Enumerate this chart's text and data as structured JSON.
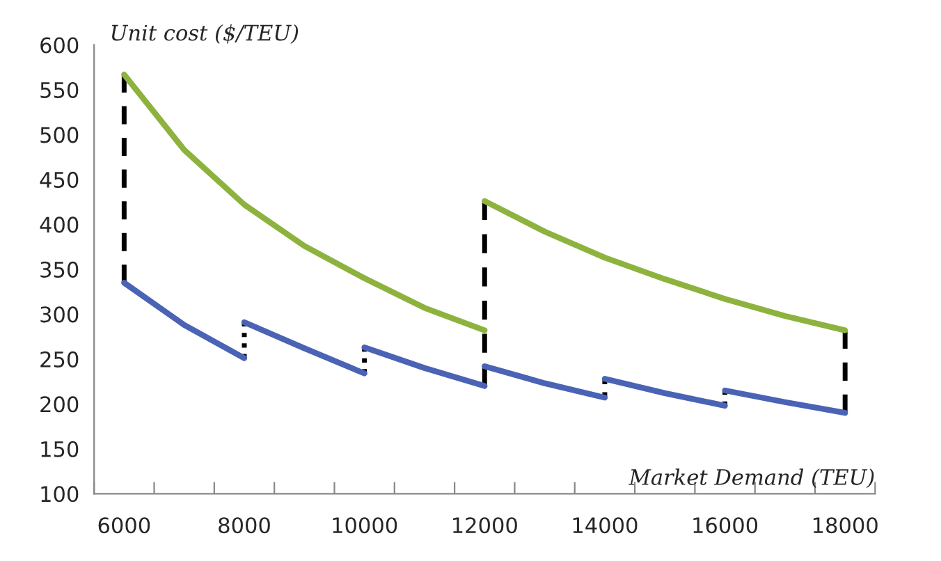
{
  "chart_data": {
    "type": "line",
    "ylabel": "Unit cost ($/TEU)",
    "xlabel": "Market Demand (TEU)",
    "xlim": [
      5500,
      18500
    ],
    "ylim": [
      100,
      600
    ],
    "xticks": [
      {
        "value": 5500,
        "label": null
      },
      6000,
      {
        "value": 6500,
        "label": null
      },
      {
        "value": 7500,
        "label": null
      },
      8000,
      {
        "value": 8500,
        "label": null
      },
      {
        "value": 9500,
        "label": null
      },
      10000,
      {
        "value": 10500,
        "label": null
      },
      {
        "value": 11500,
        "label": null
      },
      12000,
      {
        "value": 12500,
        "label": null
      },
      {
        "value": 13500,
        "label": null
      },
      14000,
      {
        "value": 14500,
        "label": null
      },
      {
        "value": 15500,
        "label": null
      },
      16000,
      {
        "value": 16500,
        "label": null
      },
      {
        "value": 17500,
        "label": null
      },
      18000,
      {
        "value": 18500,
        "label": null
      }
    ],
    "yticks": [
      100,
      150,
      200,
      250,
      300,
      350,
      400,
      450,
      500,
      550,
      600
    ],
    "grid": false,
    "legend": false,
    "marker": "none",
    "series": [
      {
        "color": "#000000",
        "line_style": "dashed",
        "x": [
          6000,
          6000
        ],
        "values": [
          567,
          335
        ]
      },
      {
        "color": "#000000",
        "line_style": "dotted",
        "x": [
          8000,
          8000
        ],
        "values": [
          251,
          291
        ]
      },
      {
        "color": "#000000",
        "line_style": "dotted",
        "x": [
          10000,
          10000
        ],
        "values": [
          234,
          263
        ]
      },
      {
        "color": "#000000",
        "line_style": "dashed",
        "x": [
          12000,
          12000
        ],
        "values": [
          220,
          426
        ]
      },
      {
        "color": "#000000",
        "line_style": "dotted",
        "x": [
          14000,
          14000
        ],
        "values": [
          207,
          228
        ]
      },
      {
        "color": "#000000",
        "line_style": "dotted",
        "x": [
          16000,
          16000
        ],
        "values": [
          198,
          215
        ]
      },
      {
        "color": "#000000",
        "line_style": "dashed",
        "x": [
          18000,
          18000
        ],
        "values": [
          282,
          190
        ]
      },
      {
        "color": "#8db33e",
        "line_style": "solid",
        "x": [
          6000,
          7000,
          8000,
          9000,
          10000,
          11000,
          12000
        ],
        "values": [
          567,
          483,
          422,
          376,
          340,
          307,
          282
        ]
      },
      {
        "color": "#8db33e",
        "line_style": "solid",
        "x": [
          12000,
          13000,
          14000,
          15000,
          16000,
          17000,
          18000
        ],
        "values": [
          426,
          392,
          363,
          339,
          317,
          298,
          282
        ]
      },
      {
        "color": "#4a63b5",
        "line_style": "solid",
        "x": [
          6000,
          7000,
          8000
        ],
        "values": [
          335,
          288,
          251
        ]
      },
      {
        "color": "#4a63b5",
        "line_style": "solid",
        "x": [
          8000,
          9000,
          10000
        ],
        "values": [
          291,
          262,
          234
        ]
      },
      {
        "color": "#4a63b5",
        "line_style": "solid",
        "x": [
          10000,
          11000,
          12000
        ],
        "values": [
          263,
          240,
          220
        ]
      },
      {
        "color": "#4a63b5",
        "line_style": "solid",
        "x": [
          12000,
          13000,
          14000
        ],
        "values": [
          242,
          223,
          207
        ]
      },
      {
        "color": "#4a63b5",
        "line_style": "solid",
        "x": [
          14000,
          15000,
          16000
        ],
        "values": [
          228,
          212,
          198
        ]
      },
      {
        "color": "#4a63b5",
        "line_style": "solid",
        "x": [
          16000,
          17000,
          18000
        ],
        "values": [
          215,
          202,
          190
        ]
      }
    ]
  }
}
